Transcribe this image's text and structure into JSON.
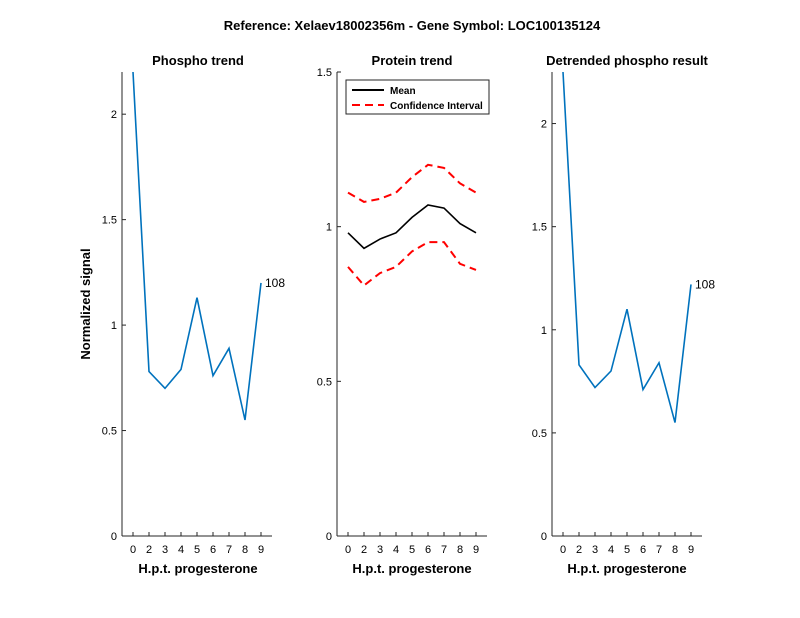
{
  "figure": {
    "suptitle": "Reference:  Xelaev18002356m - Gene Symbol:  LOC100135124"
  },
  "chart_data": [
    {
      "type": "line",
      "title": "Phospho trend",
      "xlabel": "H.p.t. progesterone",
      "ylabel": "Normalized signal",
      "x": [
        0,
        2,
        3,
        4,
        5,
        6,
        7,
        8,
        9
      ],
      "xticks": [
        "0",
        "2",
        "3",
        "4",
        "5",
        "6",
        "7",
        "8",
        "9"
      ],
      "ylim": [
        0,
        2.2
      ],
      "yticks": [
        0,
        0.5,
        1,
        1.5,
        2
      ],
      "ytick_labels": [
        "0",
        "0.5",
        "1",
        "1.5",
        "2"
      ],
      "series": [
        {
          "values": [
            2.2,
            0.78,
            0.7,
            0.79,
            1.13,
            0.76,
            0.89,
            0.55,
            1.2
          ],
          "color": "#0072BD",
          "style": "solid"
        }
      ],
      "end_label": "108",
      "grid": false
    },
    {
      "type": "line",
      "title": "Protein trend",
      "xlabel": "H.p.t. progesterone",
      "ylabel": "",
      "x": [
        0,
        2,
        3,
        4,
        5,
        6,
        7,
        8,
        9
      ],
      "xticks": [
        "0",
        "2",
        "3",
        "4",
        "5",
        "6",
        "7",
        "8",
        "9"
      ],
      "ylim": [
        0,
        1.5
      ],
      "yticks": [
        0,
        0.5,
        1,
        1.5
      ],
      "ytick_labels": [
        "0",
        "0.5",
        "1",
        "1.5"
      ],
      "series": [
        {
          "name": "Mean",
          "values": [
            0.98,
            0.93,
            0.96,
            0.98,
            1.03,
            1.07,
            1.06,
            1.01,
            0.98
          ],
          "color": "#000000",
          "style": "solid"
        },
        {
          "name": "Confidence Interval",
          "values": [
            1.11,
            1.08,
            1.09,
            1.11,
            1.16,
            1.2,
            1.19,
            1.14,
            1.11
          ],
          "color": "#FF0000",
          "style": "dashed"
        },
        {
          "values": [
            0.87,
            0.81,
            0.85,
            0.87,
            0.92,
            0.95,
            0.95,
            0.88,
            0.86
          ],
          "color": "#FF0000",
          "style": "dashed"
        }
      ],
      "legend": {
        "placement": "top-left",
        "entries": [
          "Mean",
          "Confidence Interval"
        ]
      },
      "grid": false
    },
    {
      "type": "line",
      "title": "Detrended phospho result",
      "xlabel": "H.p.t. progesterone",
      "ylabel": "",
      "x": [
        0,
        2,
        3,
        4,
        5,
        6,
        7,
        8,
        9
      ],
      "xticks": [
        "0",
        "2",
        "3",
        "4",
        "5",
        "6",
        "7",
        "8",
        "9"
      ],
      "ylim": [
        0,
        2.25
      ],
      "yticks": [
        0,
        0.5,
        1,
        1.5,
        2
      ],
      "ytick_labels": [
        "0",
        "0.5",
        "1",
        "1.5",
        "2"
      ],
      "series": [
        {
          "values": [
            2.25,
            0.83,
            0.72,
            0.8,
            1.1,
            0.71,
            0.84,
            0.55,
            1.22
          ],
          "color": "#0072BD",
          "style": "solid"
        }
      ],
      "end_label": "108",
      "grid": false
    }
  ]
}
